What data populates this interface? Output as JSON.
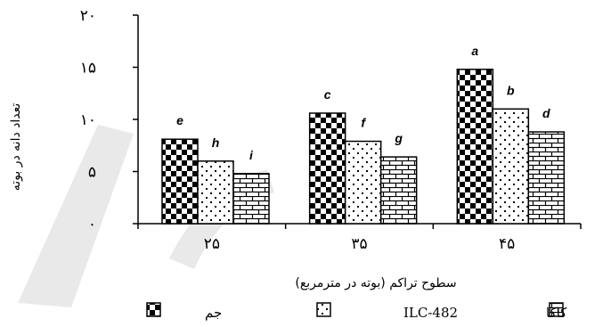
{
  "chart_data": {
    "type": "bar",
    "categories": [
      "۲۵",
      "۳۵",
      "۴۵"
    ],
    "series": [
      {
        "name": "جم",
        "values": [
          8.1,
          10.6,
          14.8
        ],
        "letters": [
          "e",
          "c",
          "a"
        ],
        "pattern": "checker"
      },
      {
        "name": "ILC-482",
        "values": [
          6.0,
          7.9,
          11.0
        ],
        "letters": [
          "h",
          "f",
          "b"
        ],
        "pattern": "dots"
      },
      {
        "name": "کاکا",
        "values": [
          4.8,
          6.4,
          8.8
        ],
        "letters": [
          "i",
          "g",
          "d"
        ],
        "pattern": "brick"
      }
    ],
    "ylim": [
      0,
      20
    ],
    "yticks": [
      0,
      5,
      10,
      15,
      20
    ],
    "ytick_labels": [
      "۰",
      "۵",
      "۱۰",
      "۱۵",
      "۲۰"
    ],
    "xlabel": "سطوح تراکم (بوته در مترمربع)",
    "ylabel": "تعداد دانه در بوته",
    "legend_position": "bottom",
    "grid": false,
    "colors": {
      "bar_fill": "#000000",
      "background": "#ffffff",
      "watermark": "#e9e9e9"
    }
  }
}
